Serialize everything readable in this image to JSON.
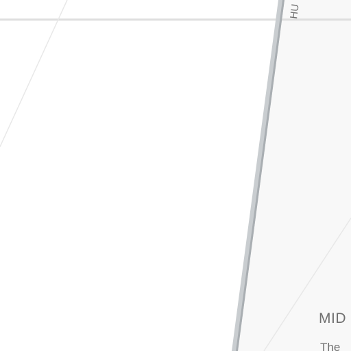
{
  "map": {
    "street_label_partial": "HU",
    "district_label_partial": "MID",
    "sub_label_partial": "The",
    "colors": {
      "background": "#ffffff",
      "road": "#dedede",
      "road_thin": "#e8e8e8",
      "avenue_fill": "#c9cdd0",
      "avenue_shadow": "#a9aeb2",
      "block_fill": "#f8f8f8",
      "label": "#6f6f6f"
    }
  }
}
